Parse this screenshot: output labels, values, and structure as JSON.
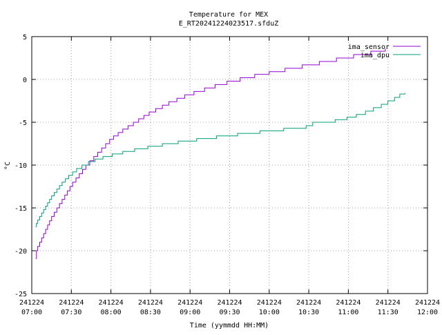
{
  "chart_data": {
    "type": "line",
    "title": "Temperature for MEX",
    "subtitle": "E_RT20241224023517.sfduZ",
    "xlabel": "Time (yymmdd HH:MM)",
    "ylabel": "°C",
    "ylim": [
      -25,
      5
    ],
    "yticks": [
      -25,
      -20,
      -15,
      -10,
      -5,
      0,
      5
    ],
    "xlim_minutes": [
      420,
      720
    ],
    "xticks": [
      {
        "date": "241224",
        "time": "07:00",
        "minutes": 420
      },
      {
        "date": "241224",
        "time": "07:30",
        "minutes": 450
      },
      {
        "date": "241224",
        "time": "08:00",
        "minutes": 480
      },
      {
        "date": "241224",
        "time": "08:30",
        "minutes": 510
      },
      {
        "date": "241224",
        "time": "09:00",
        "minutes": 540
      },
      {
        "date": "241224",
        "time": "09:30",
        "minutes": 570
      },
      {
        "date": "241224",
        "time": "10:00",
        "minutes": 600
      },
      {
        "date": "241224",
        "time": "10:30",
        "minutes": 630
      },
      {
        "date": "241224",
        "time": "11:00",
        "minutes": 660
      },
      {
        "date": "241224",
        "time": "11:30",
        "minutes": 690
      },
      {
        "date": "241224",
        "time": "12:00",
        "minutes": 720
      }
    ],
    "grid": true,
    "legend_position": "top-right",
    "step": true,
    "series": [
      {
        "name": "ima_sensor",
        "color": "#9400d3",
        "points": [
          [
            423,
            -20.9
          ],
          [
            423.5,
            -20.0
          ],
          [
            424.5,
            -19.5
          ],
          [
            426,
            -19.0
          ],
          [
            427.5,
            -18.5
          ],
          [
            429,
            -18.0
          ],
          [
            430.5,
            -17.5
          ],
          [
            432,
            -17.0
          ],
          [
            433.5,
            -16.5
          ],
          [
            435,
            -16.0
          ],
          [
            437,
            -15.5
          ],
          [
            439,
            -15.0
          ],
          [
            441,
            -14.5
          ],
          [
            443,
            -14.0
          ],
          [
            445,
            -13.5
          ],
          [
            447,
            -13.0
          ],
          [
            449,
            -12.5
          ],
          [
            451,
            -12.0
          ],
          [
            453.5,
            -11.5
          ],
          [
            456,
            -11.0
          ],
          [
            458.5,
            -10.5
          ],
          [
            461,
            -10.0
          ],
          [
            464,
            -9.5
          ],
          [
            467,
            -9.0
          ],
          [
            470,
            -8.5
          ],
          [
            473,
            -8.0
          ],
          [
            476,
            -7.5
          ],
          [
            479,
            -7.0
          ],
          [
            482,
            -6.6
          ],
          [
            485.5,
            -6.2
          ],
          [
            489,
            -5.8
          ],
          [
            493,
            -5.4
          ],
          [
            497,
            -5.0
          ],
          [
            501,
            -4.6
          ],
          [
            505,
            -4.2
          ],
          [
            509,
            -3.8
          ],
          [
            514,
            -3.4
          ],
          [
            519,
            -3.0
          ],
          [
            524,
            -2.6
          ],
          [
            530,
            -2.2
          ],
          [
            536,
            -1.8
          ],
          [
            543,
            -1.4
          ],
          [
            551,
            -1.0
          ],
          [
            559,
            -0.6
          ],
          [
            568,
            -0.2
          ],
          [
            578,
            0.2
          ],
          [
            589,
            0.6
          ],
          [
            600,
            0.9
          ],
          [
            612,
            1.3
          ],
          [
            625,
            1.7
          ],
          [
            638,
            2.1
          ],
          [
            651,
            2.5
          ],
          [
            664,
            2.9
          ],
          [
            677,
            3.3
          ],
          [
            688,
            3.6
          ]
        ]
      },
      {
        "name": "ima_dpu",
        "color": "#009e73",
        "points": [
          [
            423,
            -17.2
          ],
          [
            423.5,
            -16.8
          ],
          [
            424.5,
            -16.4
          ],
          [
            426,
            -16.0
          ],
          [
            427.5,
            -15.6
          ],
          [
            429,
            -15.2
          ],
          [
            430.5,
            -14.8
          ],
          [
            432,
            -14.4
          ],
          [
            433.5,
            -14.0
          ],
          [
            435,
            -13.6
          ],
          [
            437,
            -13.2
          ],
          [
            439,
            -12.8
          ],
          [
            441,
            -12.4
          ],
          [
            443,
            -12.0
          ],
          [
            445.5,
            -11.6
          ],
          [
            448,
            -11.2
          ],
          [
            451,
            -10.8
          ],
          [
            454,
            -10.4
          ],
          [
            458,
            -10.0
          ],
          [
            463,
            -9.6
          ],
          [
            468,
            -9.3
          ],
          [
            474,
            -9.0
          ],
          [
            481,
            -8.7
          ],
          [
            489,
            -8.4
          ],
          [
            498,
            -8.1
          ],
          [
            508,
            -7.8
          ],
          [
            519,
            -7.5
          ],
          [
            531,
            -7.2
          ],
          [
            545,
            -6.9
          ],
          [
            560,
            -6.6
          ],
          [
            576,
            -6.3
          ],
          [
            593,
            -6.0
          ],
          [
            611,
            -5.7
          ],
          [
            628,
            -5.4
          ],
          [
            633,
            -5.0
          ],
          [
            650,
            -4.7
          ],
          [
            659,
            -4.4
          ],
          [
            666,
            -4.1
          ],
          [
            673,
            -3.7
          ],
          [
            679,
            -3.3
          ],
          [
            685,
            -2.9
          ],
          [
            690,
            -2.5
          ],
          [
            695,
            -2.1
          ],
          [
            699,
            -1.7
          ],
          [
            703,
            -1.6
          ]
        ]
      }
    ]
  }
}
